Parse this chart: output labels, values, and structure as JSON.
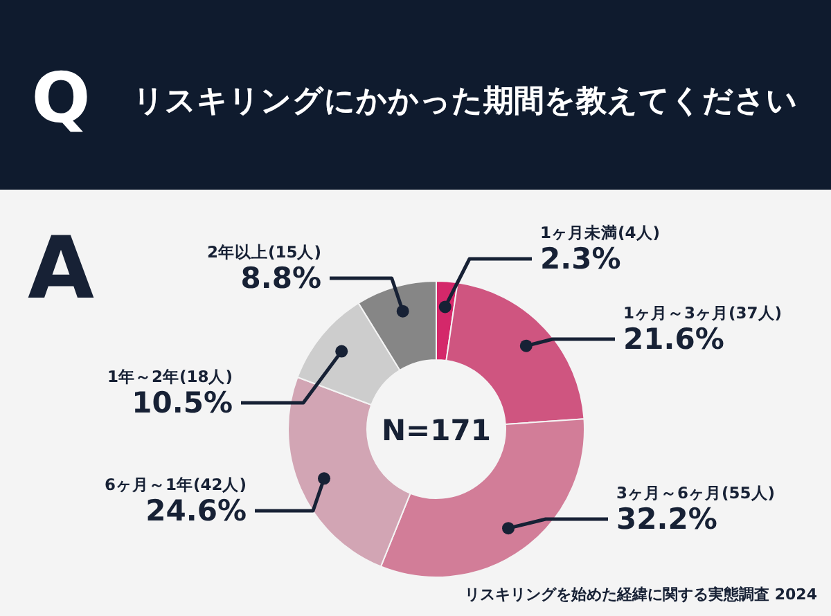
{
  "chart_data": {
    "type": "donut",
    "title": "リスキリングにかかった期間を教えてください",
    "categories": [
      "1ヶ月未満(4人)",
      "1ヶ月～3ヶ月(37人)",
      "3ヶ月～6ヶ月(55人)",
      "6ヶ月～1年(42人)",
      "1年～2年(18人)",
      "2年以上(15人)"
    ],
    "values": [
      2.3,
      21.6,
      32.2,
      24.6,
      10.5,
      8.8
    ],
    "value_labels": [
      "2.3%",
      "21.6%",
      "32.2%",
      "24.6%",
      "10.5%",
      "8.8%"
    ],
    "colors": [
      "#d4286a",
      "#cf5580",
      "#d27d98",
      "#d2a5b4",
      "#cdcdcd",
      "#868686"
    ],
    "annotations": [
      "Q",
      "A",
      "N=171",
      "リスキリングを始めた経緯に関する実態調査 2024"
    ]
  }
}
